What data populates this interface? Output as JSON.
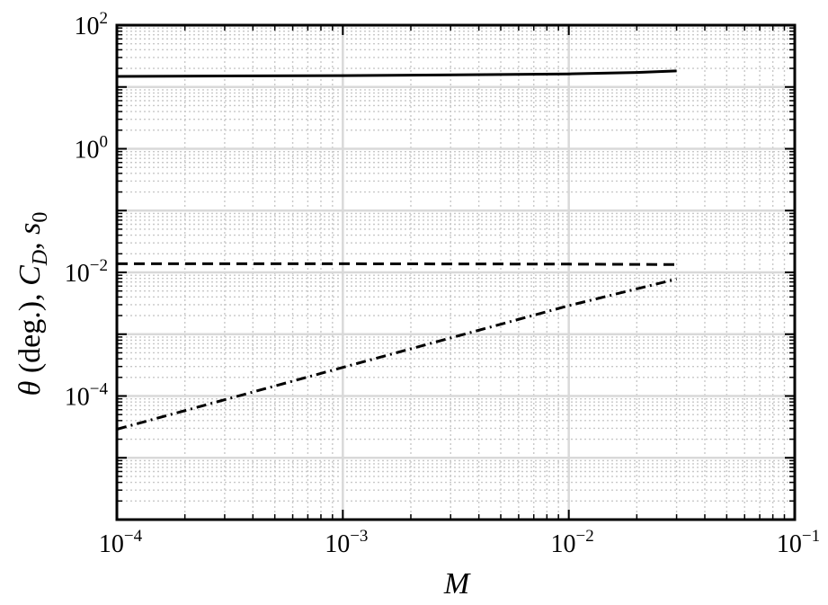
{
  "chart_data": {
    "type": "line",
    "title": "",
    "xlabel": "M",
    "ylabel": {
      "theta": "θ",
      "deg": " (deg.), ",
      "cd_base": "C",
      "cd_sub": "D",
      "comma": ", ",
      "s_base": "s",
      "s_sub": "0"
    },
    "xscale": "log",
    "yscale": "log",
    "xlim": [
      0.0001,
      0.1
    ],
    "ylim": [
      1e-06,
      100
    ],
    "grid": true,
    "x_ticks": [
      {
        "base": "10",
        "exp": "−4",
        "value": 0.0001
      },
      {
        "base": "10",
        "exp": "−3",
        "value": 0.001
      },
      {
        "base": "10",
        "exp": "−2",
        "value": 0.01
      },
      {
        "base": "10",
        "exp": "−1",
        "value": 0.1
      }
    ],
    "y_ticks": [
      {
        "base": "10",
        "exp": "2",
        "value": 100
      },
      {
        "base": "10",
        "exp": "0",
        "value": 1
      },
      {
        "base": "10",
        "exp": "−2",
        "value": 0.01
      },
      {
        "base": "10",
        "exp": "−4",
        "value": 0.0001
      }
    ],
    "series": [
      {
        "style": "solid",
        "x": [
          0.0001,
          0.001,
          0.005,
          0.01,
          0.02,
          0.03
        ],
        "y": [
          14.8,
          15.3,
          15.9,
          16.3,
          17.2,
          18.2
        ]
      },
      {
        "style": "dashed",
        "x": [
          0.0001,
          0.001,
          0.01,
          0.03
        ],
        "y": [
          0.0138,
          0.0138,
          0.0136,
          0.0134
        ]
      },
      {
        "style": "dashdot",
        "x": [
          0.0001,
          0.001,
          0.01,
          0.03
        ],
        "y": [
          2.9e-05,
          0.00029,
          0.0029,
          0.0078
        ]
      }
    ]
  }
}
